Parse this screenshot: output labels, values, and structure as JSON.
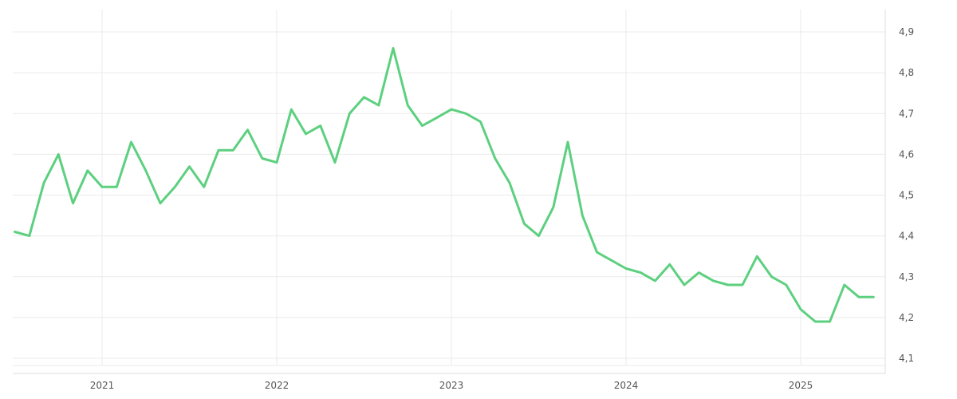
{
  "chart_data": {
    "type": "line",
    "title": "",
    "xlabel": "",
    "ylabel": "",
    "x_tick_labels": [
      "2021",
      "2022",
      "2023",
      "2024",
      "2025"
    ],
    "y_tick_labels": [
      "4,1",
      "4,2",
      "4,3",
      "4,4",
      "4,5",
      "4,6",
      "4,7",
      "4,8",
      "4,9"
    ],
    "y_ticks": [
      4.1,
      4.2,
      4.3,
      4.4,
      4.5,
      4.6,
      4.7,
      4.8,
      4.9
    ],
    "ylim": [
      4.08,
      4.95
    ],
    "xlim": [
      "2020-07",
      "2025-07"
    ],
    "grid": true,
    "y_axis_position": "right",
    "decimal_separator": ",",
    "line_color": "#5cd07f",
    "series": [
      {
        "x": [
          "2020-07",
          "2020-08",
          "2020-09",
          "2020-10",
          "2020-11",
          "2020-12",
          "2021-01",
          "2021-02",
          "2021-03",
          "2021-04",
          "2021-05",
          "2021-06",
          "2021-07",
          "2021-08",
          "2021-09",
          "2021-10",
          "2021-11",
          "2021-12",
          "2022-01",
          "2022-02",
          "2022-03",
          "2022-04",
          "2022-05",
          "2022-06",
          "2022-07",
          "2022-08",
          "2022-09",
          "2022-10",
          "2022-11",
          "2022-12",
          "2023-01",
          "2023-02",
          "2023-03",
          "2023-04",
          "2023-05",
          "2023-06",
          "2023-07",
          "2023-08",
          "2023-09",
          "2023-10",
          "2023-11",
          "2023-12",
          "2024-01",
          "2024-02",
          "2024-03",
          "2024-04",
          "2024-05",
          "2024-06",
          "2024-07",
          "2024-08",
          "2024-09",
          "2024-10",
          "2024-11",
          "2024-12",
          "2025-01",
          "2025-02",
          "2025-03",
          "2025-04",
          "2025-05",
          "2025-06"
        ],
        "values": [
          4.41,
          4.4,
          4.53,
          4.6,
          4.48,
          4.56,
          4.52,
          4.52,
          4.63,
          4.56,
          4.48,
          4.52,
          4.57,
          4.52,
          4.61,
          4.61,
          4.66,
          4.59,
          4.58,
          4.71,
          4.65,
          4.67,
          4.58,
          4.7,
          4.74,
          4.72,
          4.86,
          4.72,
          4.67,
          4.69,
          4.71,
          4.7,
          4.68,
          4.59,
          4.53,
          4.43,
          4.4,
          4.47,
          4.63,
          4.45,
          4.36,
          4.34,
          4.32,
          4.31,
          4.29,
          4.33,
          4.28,
          4.31,
          4.29,
          4.28,
          4.28,
          4.35,
          4.3,
          4.28,
          4.22,
          4.19,
          4.19,
          4.28,
          4.25,
          4.25
        ]
      }
    ]
  }
}
